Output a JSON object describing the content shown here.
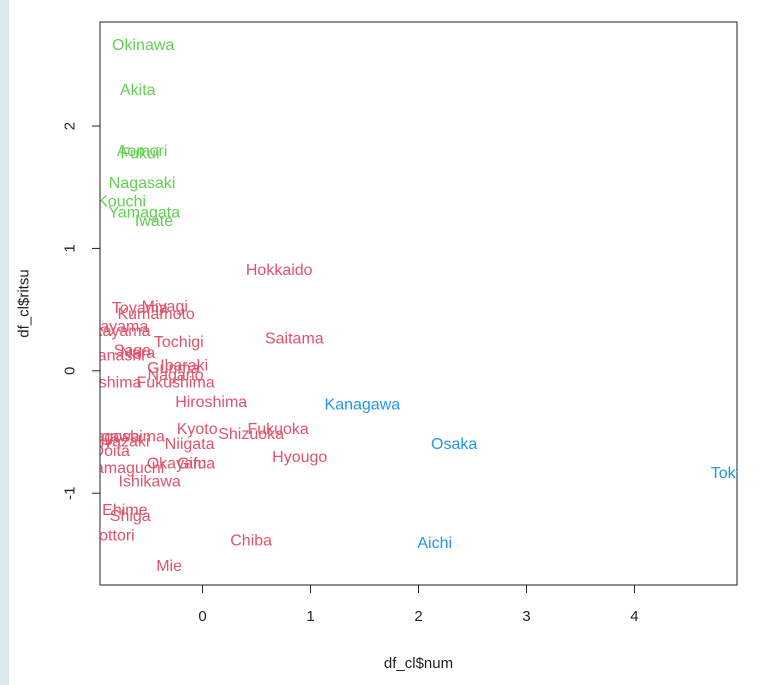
{
  "chart_data": {
    "type": "scatter",
    "title": "",
    "xlabel": "df_cl$num",
    "ylabel": "df_cl$ritsu",
    "xlim": [
      -0.95,
      4.95
    ],
    "ylim": [
      -1.75,
      2.85
    ],
    "x_ticks": [
      0,
      1,
      2,
      3,
      4
    ],
    "y_ticks": [
      -1,
      0,
      1,
      2
    ],
    "grid": false,
    "legend": "none",
    "marker": "text-labels",
    "cluster_colors": {
      "1": "#DF536B",
      "2": "#61D04F",
      "3": "#2297E6"
    },
    "points": [
      {
        "label": "Okinawa",
        "x": -0.55,
        "y": 2.66,
        "cluster": "2"
      },
      {
        "label": "Akita",
        "x": -0.6,
        "y": 2.29,
        "cluster": "2"
      },
      {
        "label": "Aomori",
        "x": -0.56,
        "y": 1.79,
        "cluster": "2"
      },
      {
        "label": "Fukui",
        "x": -0.58,
        "y": 1.77,
        "cluster": "2"
      },
      {
        "label": "Nagasaki",
        "x": -0.56,
        "y": 1.53,
        "cluster": "2"
      },
      {
        "label": "Kouchi",
        "x": -0.75,
        "y": 1.38,
        "cluster": "2"
      },
      {
        "label": "Yamagata",
        "x": -0.54,
        "y": 1.29,
        "cluster": "2"
      },
      {
        "label": "Iwate",
        "x": -0.45,
        "y": 1.22,
        "cluster": "2"
      },
      {
        "label": "Hokkaido",
        "x": 0.71,
        "y": 0.82,
        "cluster": "1"
      },
      {
        "label": "Miyagi",
        "x": -0.35,
        "y": 0.52,
        "cluster": "1"
      },
      {
        "label": "Toyama",
        "x": -0.58,
        "y": 0.51,
        "cluster": "1"
      },
      {
        "label": "Kumamoto",
        "x": -0.43,
        "y": 0.46,
        "cluster": "1"
      },
      {
        "label": "Okayama",
        "x": -0.82,
        "y": 0.36,
        "cluster": "1"
      },
      {
        "label": "Wakayama",
        "x": -0.85,
        "y": 0.32,
        "cluster": "1"
      },
      {
        "label": "Saitama",
        "x": 0.85,
        "y": 0.26,
        "cluster": "1"
      },
      {
        "label": "Tochigi",
        "x": -0.22,
        "y": 0.23,
        "cluster": "1"
      },
      {
        "label": "Yamanashi",
        "x": -0.9,
        "y": 0.12,
        "cluster": "1"
      },
      {
        "label": "Saga",
        "x": -0.65,
        "y": 0.16,
        "cluster": "1"
      },
      {
        "label": "Nara",
        "x": -0.6,
        "y": 0.14,
        "cluster": "1"
      },
      {
        "label": "Ibaraki",
        "x": -0.17,
        "y": 0.04,
        "cluster": "1"
      },
      {
        "label": "Gunma",
        "x": -0.27,
        "y": 0.02,
        "cluster": "1"
      },
      {
        "label": "Nagano",
        "x": -0.25,
        "y": -0.04,
        "cluster": "1"
      },
      {
        "label": "Tokushima",
        "x": -0.92,
        "y": -0.1,
        "cluster": "1"
      },
      {
        "label": "Fukushima",
        "x": -0.25,
        "y": -0.1,
        "cluster": "1"
      },
      {
        "label": "Hiroshima",
        "x": 0.08,
        "y": -0.26,
        "cluster": "1"
      },
      {
        "label": "Kyoto",
        "x": -0.05,
        "y": -0.48,
        "cluster": "1"
      },
      {
        "label": "Fukuoka",
        "x": 0.7,
        "y": -0.48,
        "cluster": "1"
      },
      {
        "label": "Shizuoka",
        "x": 0.45,
        "y": -0.52,
        "cluster": "1"
      },
      {
        "label": "Kagawa",
        "x": -0.85,
        "y": -0.54,
        "cluster": "1"
      },
      {
        "label": "Kagoshima",
        "x": -0.72,
        "y": -0.54,
        "cluster": "1"
      },
      {
        "label": "Miyazaki",
        "x": -0.78,
        "y": -0.58,
        "cluster": "1"
      },
      {
        "label": "Niigata",
        "x": -0.12,
        "y": -0.6,
        "cluster": "1"
      },
      {
        "label": "Ooita",
        "x": -0.85,
        "y": -0.66,
        "cluster": "1"
      },
      {
        "label": "Hyougo",
        "x": 0.9,
        "y": -0.71,
        "cluster": "1"
      },
      {
        "label": "Okayama",
        "x": -0.2,
        "y": -0.76,
        "cluster": "1"
      },
      {
        "label": "Gifu",
        "x": -0.1,
        "y": -0.76,
        "cluster": "1"
      },
      {
        "label": "Yamaguchi",
        "x": -0.72,
        "y": -0.8,
        "cluster": "1"
      },
      {
        "label": "Ishikawa",
        "x": -0.49,
        "y": -0.91,
        "cluster": "1"
      },
      {
        "label": "Ehime",
        "x": -0.72,
        "y": -1.14,
        "cluster": "1"
      },
      {
        "label": "Shiga",
        "x": -0.67,
        "y": -1.19,
        "cluster": "1"
      },
      {
        "label": "Tottori",
        "x": -0.83,
        "y": -1.35,
        "cluster": "1"
      },
      {
        "label": "Chiba",
        "x": 0.45,
        "y": -1.39,
        "cluster": "1"
      },
      {
        "label": "Mie",
        "x": -0.31,
        "y": -1.6,
        "cluster": "1"
      },
      {
        "label": "Kanagawa",
        "x": 1.48,
        "y": -0.28,
        "cluster": "3"
      },
      {
        "label": "Osaka",
        "x": 2.33,
        "y": -0.6,
        "cluster": "3"
      },
      {
        "label": "Aichi",
        "x": 2.15,
        "y": -1.41,
        "cluster": "3"
      },
      {
        "label": "Tokyo",
        "x": 4.9,
        "y": -0.84,
        "cluster": "3"
      }
    ]
  }
}
